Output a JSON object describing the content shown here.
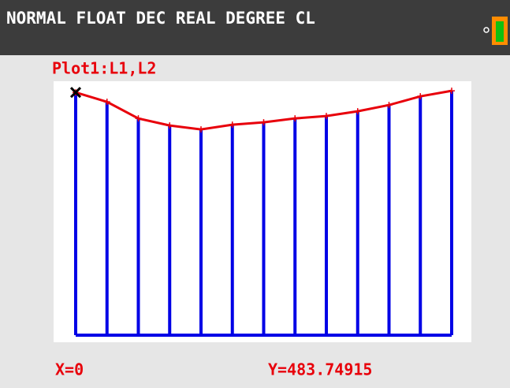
{
  "status_bar": {
    "text": "NORMAL FLOAT DEC REAL DEGREE CL"
  },
  "plot": {
    "label": "Plot1:L1,L2"
  },
  "cursor": {
    "x_label": "X=0",
    "y_label": "Y=483.74915"
  },
  "chart_data": {
    "type": "line",
    "x": [
      0,
      1,
      2,
      3,
      4,
      5,
      6,
      7,
      8,
      9,
      10,
      11,
      12
    ],
    "values": [
      483.7,
      464.9,
      431.9,
      417.8,
      409.9,
      419.4,
      424.1,
      431.9,
      436.6,
      446.1,
      458.6,
      475.9,
      486.9
    ],
    "xlim": [
      0,
      12
    ],
    "ylim": [
      0,
      506
    ],
    "color": "#e8000b",
    "impulse_color": "#0000e6"
  }
}
